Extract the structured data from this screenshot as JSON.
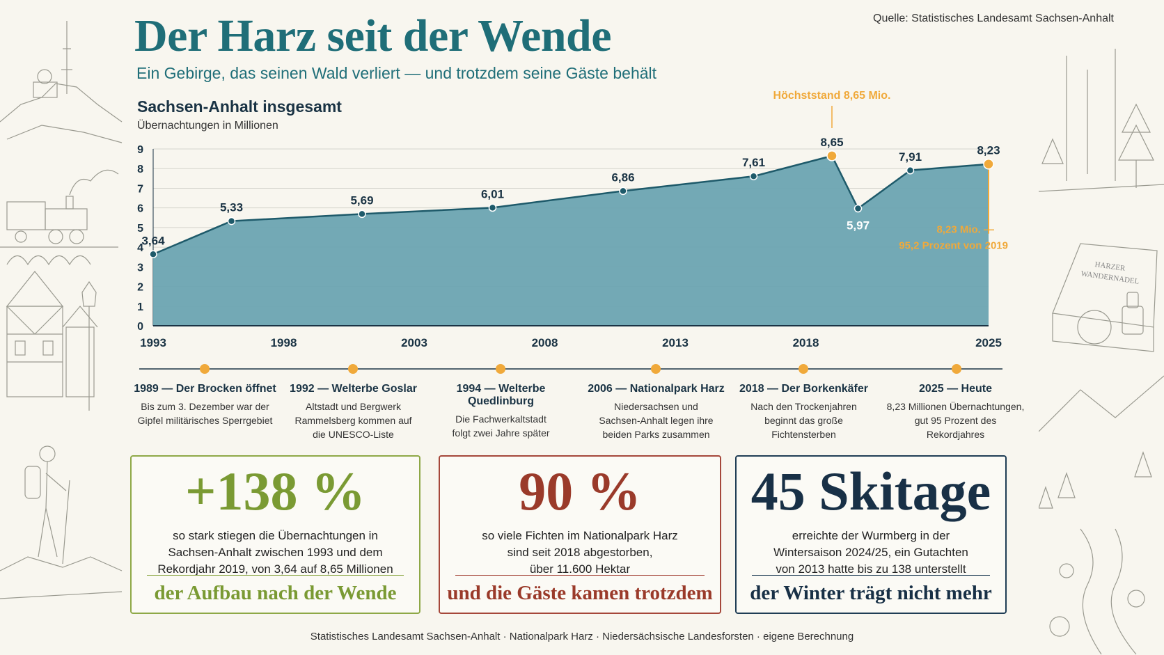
{
  "header": {
    "title": "Der Harz seit der Wende",
    "subtitle": "Ein Gebirge, das seinen Wald verliert — und trotzdem seine Gäste behält",
    "source": "Quelle: Statistisches Landesamt Sachsen-Anhalt"
  },
  "chart_data": {
    "type": "area",
    "title": "Sachsen-Anhalt insgesamt",
    "ylabel": "Übernachtungen in Millionen",
    "xlim": [
      1993,
      2025
    ],
    "ylim": [
      0,
      9
    ],
    "yticks": [
      "0",
      "1",
      "2",
      "3",
      "4",
      "5",
      "6",
      "7",
      "8",
      "9"
    ],
    "xticks": [
      {
        "x": 1993,
        "label": "1993"
      },
      {
        "x": 1998,
        "label": "1998"
      },
      {
        "x": 2003,
        "label": "2003"
      },
      {
        "x": 2008,
        "label": "2008"
      },
      {
        "x": 2013,
        "label": "2013"
      },
      {
        "x": 2018,
        "label": "2018"
      },
      {
        "x": 2025,
        "label": "2025"
      }
    ],
    "grid": true,
    "points": [
      {
        "x": 1993,
        "y": 3.64,
        "label": "3,64"
      },
      {
        "x": 1996,
        "y": 5.33,
        "label": "5,33"
      },
      {
        "x": 2001,
        "y": 5.69,
        "label": "5,69"
      },
      {
        "x": 2006,
        "y": 6.01,
        "label": "6,01"
      },
      {
        "x": 2011,
        "y": 6.86,
        "label": "6,86"
      },
      {
        "x": 2016,
        "y": 7.61,
        "label": "7,61"
      },
      {
        "x": 2019,
        "y": 8.65,
        "label": "8,65",
        "highlight": true
      },
      {
        "x": 2020,
        "y": 5.97,
        "label": "5,97"
      },
      {
        "x": 2022,
        "y": 7.91,
        "label": "7,91"
      },
      {
        "x": 2025,
        "y": 8.23,
        "label": "8,23",
        "highlight": true
      }
    ],
    "annotations": {
      "peak": "Höchststand 8,65 Mio.",
      "current_line1": "8,23 Mio. —",
      "current_line2": "95,2 Prozent von 2019"
    },
    "colors": {
      "area": "#6ba4b1",
      "line": "#1e5a6a",
      "highlight": "#f0a93a",
      "grid": "#d4d4cc",
      "axis": "#1a3344"
    }
  },
  "timeline": [
    {
      "head": "1989 — Der Brocken öffnet",
      "lines": [
        "Bis zum 3. Dezember war der",
        "Gipfel militärisches Sperrgebiet"
      ]
    },
    {
      "head": "1992 — Welterbe Goslar",
      "lines": [
        "Altstadt und Bergwerk",
        "Rammelsberg kommen auf",
        "die UNESCO-Liste"
      ]
    },
    {
      "head": "1994 — Welterbe Quedlinburg",
      "lines": [
        "Die Fachwerkaltstadt",
        "folgt zwei Jahre später"
      ]
    },
    {
      "head": "2006 — Nationalpark Harz",
      "lines": [
        "Niedersachsen und",
        "Sachsen-Anhalt legen ihre",
        "beiden Parks zusammen"
      ]
    },
    {
      "head": "2018 — Der Borkenkäfer",
      "lines": [
        "Nach den Trockenjahren",
        "beginnt das große",
        "Fichtensterben"
      ]
    },
    {
      "head": "2025 — Heute",
      "lines": [
        "8,23 Millionen Übernachtungen,",
        "gut 95 Prozent des",
        "Rekordjahres"
      ]
    }
  ],
  "cards": [
    {
      "big": "+138 %",
      "lines": [
        "so stark stiegen die Übernachtungen in",
        "Sachsen-Anhalt zwischen 1993 und dem",
        "Rekordjahr 2019, von 3,64 auf 8,65 Millionen"
      ],
      "foot": "der Aufbau nach der Wende"
    },
    {
      "big": "90 %",
      "lines": [
        "so viele Fichten im Nationalpark Harz",
        "sind seit 2018 abgestorben,",
        "über 11.600 Hektar"
      ],
      "foot": "und die Gäste kamen trotzdem"
    },
    {
      "big": "45 Skitage",
      "lines": [
        "erreichte der Wurmberg in der",
        "Wintersaison 2024/25, ein Gutachten",
        "von 2013 hatte bis zu 138 unterstellt"
      ],
      "foot": "der Winter trägt nicht mehr"
    }
  ],
  "side_art": {
    "left_icons": [
      "brocken-tower-icon",
      "steam-train-icon",
      "half-timbered-house-icon",
      "street-lamp-icon",
      "hiker-icon"
    ],
    "right_icons": [
      "spruce-forest-icon",
      "stamp-box-icon",
      "mountain-stream-icon"
    ],
    "stamp_box_line1": "HARZER",
    "stamp_box_line2": "WANDERNADEL"
  },
  "footer": {
    "sources": "Statistisches Landesamt Sachsen-Anhalt  ·  Nationalpark Harz  ·  Niedersächsische Landesforsten  ·  eigene Berechnung"
  }
}
